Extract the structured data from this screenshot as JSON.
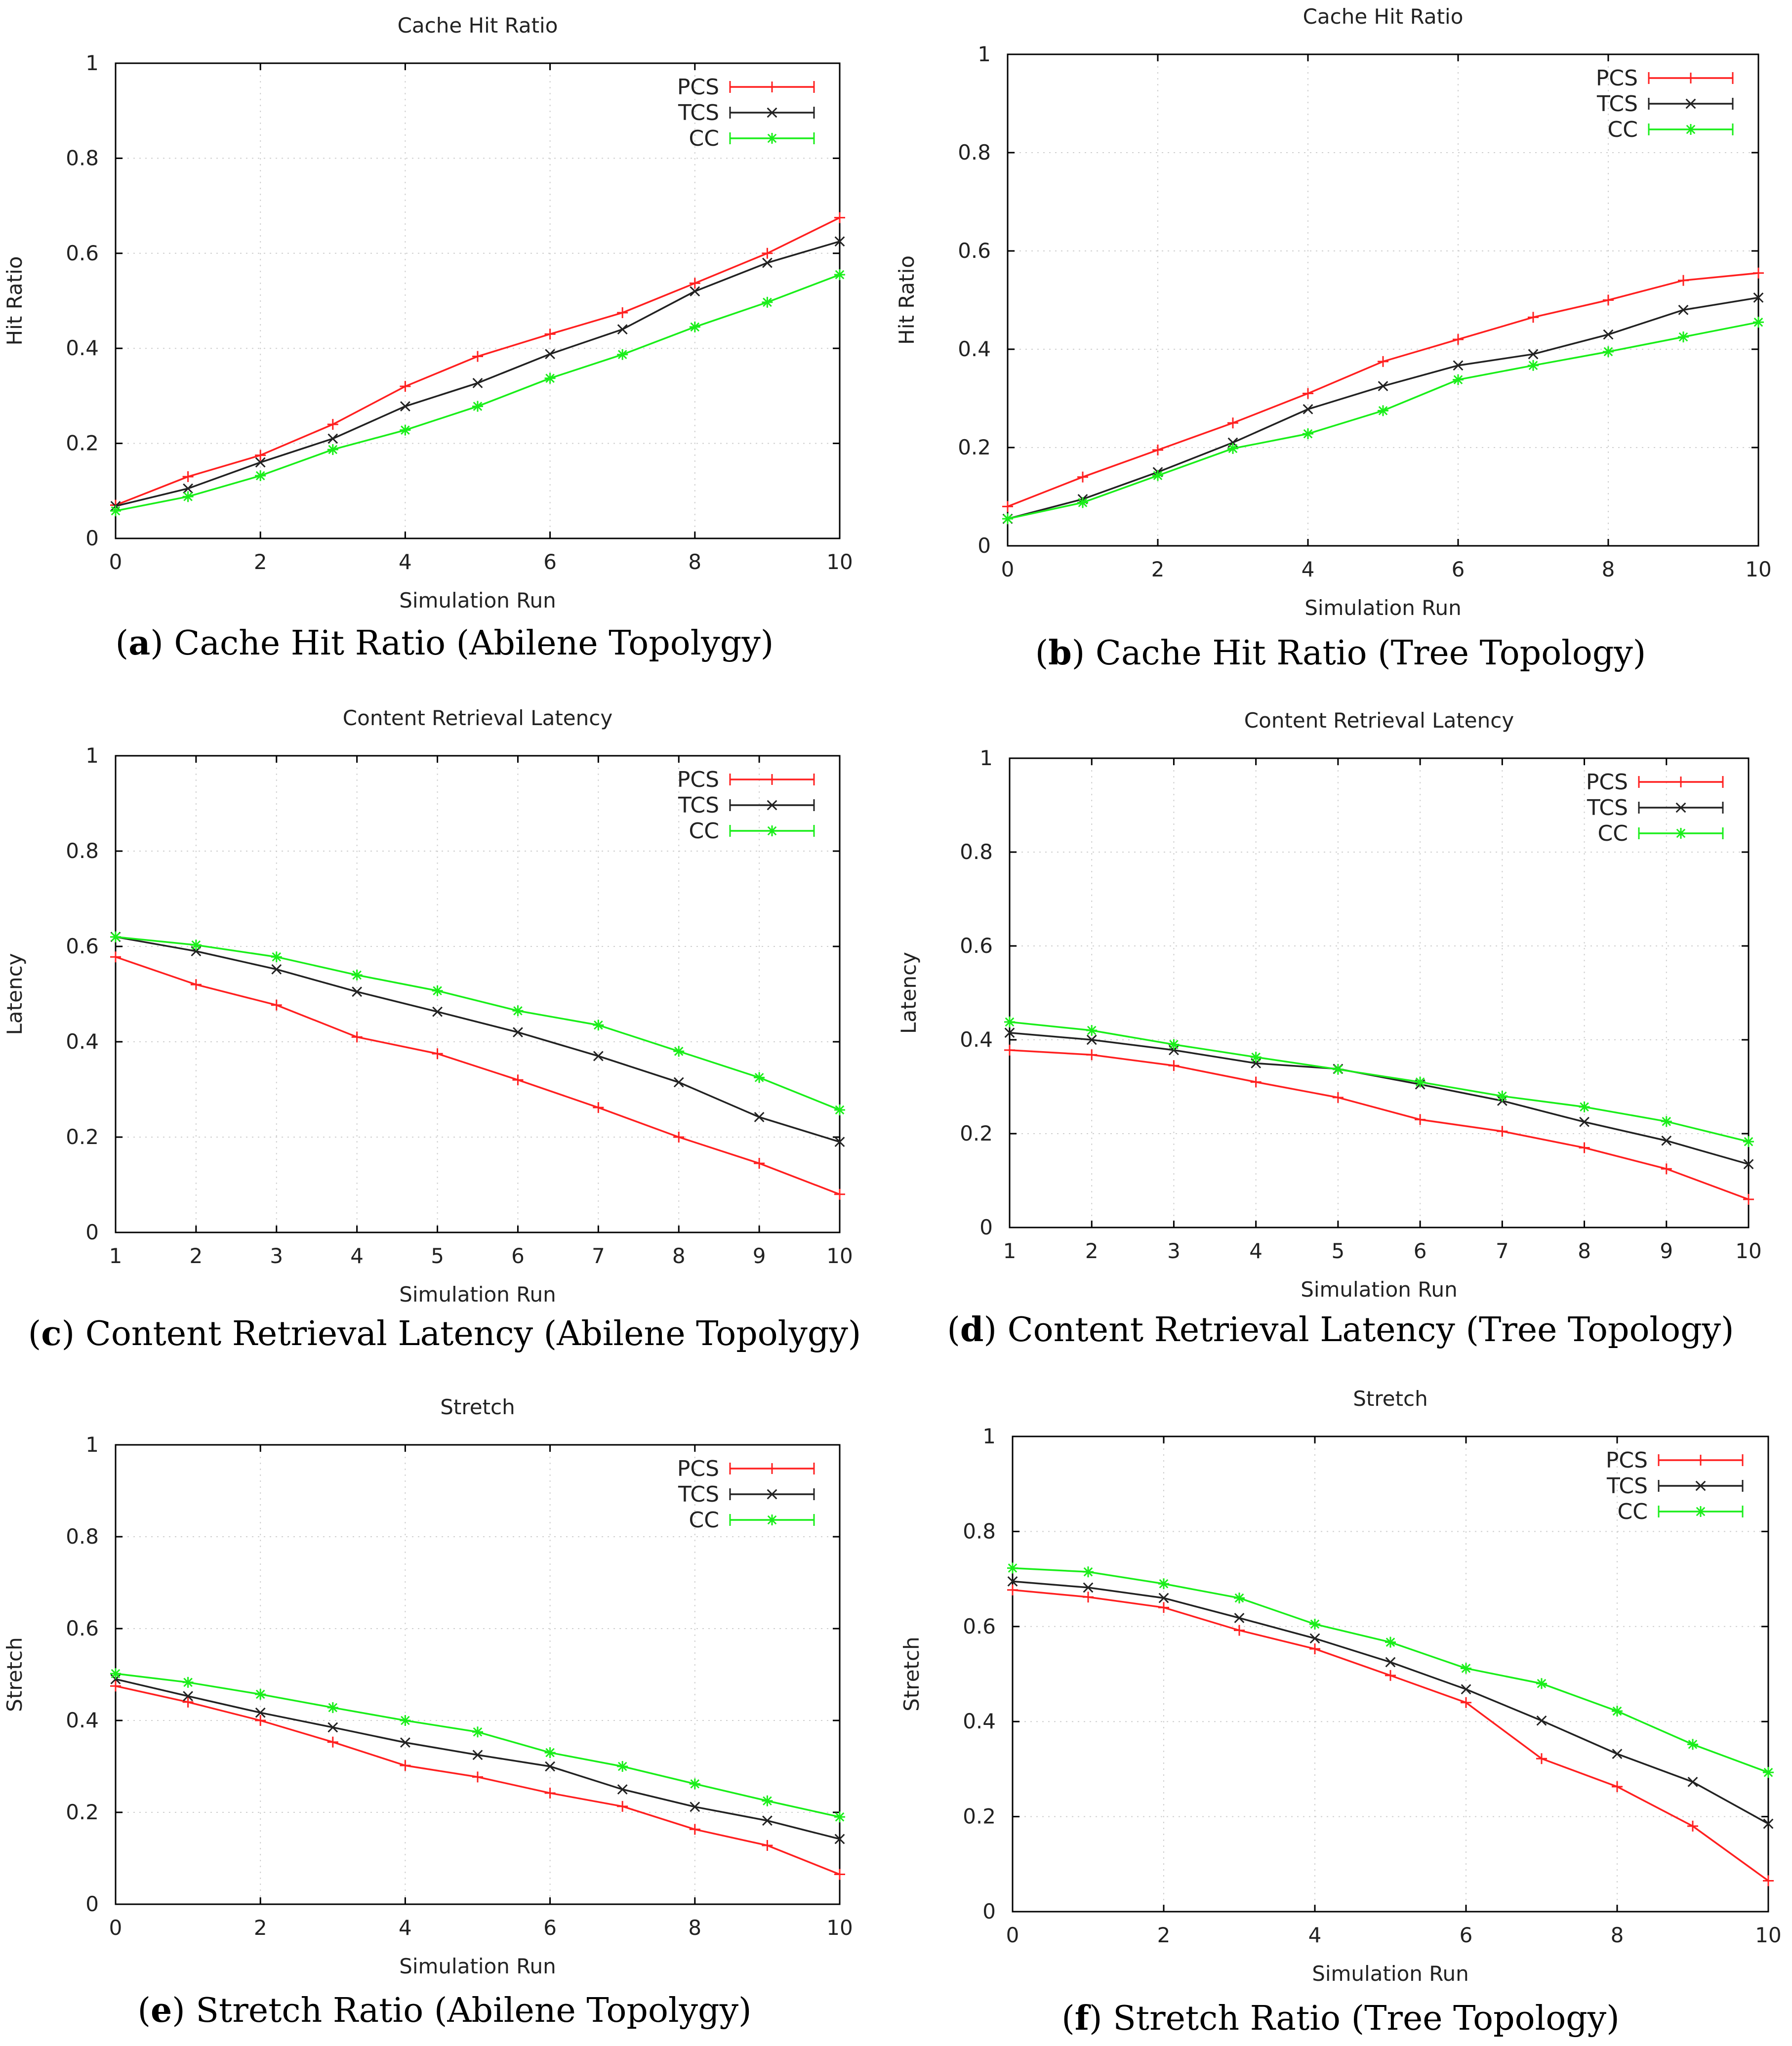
{
  "figure": {
    "panels": [
      {
        "letter": "a",
        "caption_text": " Cache Hit Ratio (Abilene Topolygy)"
      },
      {
        "letter": "b",
        "caption_text": " Cache Hit Ratio (Tree Topology)"
      },
      {
        "letter": "c",
        "caption_text": " Content Retrieval Latency (Abilene Topolygy)"
      },
      {
        "letter": "d",
        "caption_text": " Content Retrieval Latency (Tree Topology)"
      },
      {
        "letter": "e",
        "caption_text": " Stretch Ratio (Abilene Topolygy)"
      },
      {
        "letter": "f",
        "caption_text": " Stretch Ratio (Tree Topology)"
      }
    ]
  },
  "colors": {
    "PCS": "#ff2020",
    "TCS": "#222222",
    "CC": "#1aee1a",
    "grid": "#cfcfcf",
    "axis": "#000000"
  },
  "chart_data": [
    {
      "type": "line",
      "title": "Cache Hit Ratio",
      "xlabel": "Simulation Run",
      "ylabel": "Hit Ratio",
      "x": [
        0,
        1,
        2,
        3,
        4,
        5,
        6,
        7,
        8,
        9,
        10
      ],
      "xlim": [
        0,
        10
      ],
      "ylim": [
        0,
        1
      ],
      "xticks": [
        "0",
        "2",
        "4",
        "6",
        "8",
        "10"
      ],
      "yticks": [
        "0",
        "0.2",
        "0.4",
        "0.6",
        "0.8",
        "1"
      ],
      "legend": "top-right",
      "grid": true,
      "series": [
        {
          "name": "PCS",
          "marker": "+",
          "values": [
            0.07,
            0.13,
            0.175,
            0.24,
            0.32,
            0.383,
            0.43,
            0.475,
            0.537,
            0.6,
            0.675
          ]
        },
        {
          "name": "TCS",
          "marker": "x",
          "values": [
            0.068,
            0.105,
            0.16,
            0.21,
            0.278,
            0.327,
            0.388,
            0.44,
            0.52,
            0.58,
            0.625
          ]
        },
        {
          "name": "CC",
          "marker": "*",
          "values": [
            0.058,
            0.088,
            0.132,
            0.187,
            0.228,
            0.278,
            0.337,
            0.387,
            0.445,
            0.497,
            0.555
          ]
        }
      ]
    },
    {
      "type": "line",
      "title": "Cache Hit Ratio",
      "xlabel": "Simulation Run",
      "ylabel": "Hit Ratio",
      "x": [
        0,
        1,
        2,
        3,
        4,
        5,
        6,
        7,
        8,
        9,
        10
      ],
      "xlim": [
        0,
        10
      ],
      "ylim": [
        0,
        1
      ],
      "xticks": [
        "0",
        "2",
        "4",
        "6",
        "8",
        "10"
      ],
      "yticks": [
        "0",
        "0.2",
        "0.4",
        "0.6",
        "0.8",
        "1"
      ],
      "legend": "top-right",
      "grid": true,
      "series": [
        {
          "name": "PCS",
          "marker": "+",
          "values": [
            0.08,
            0.14,
            0.195,
            0.25,
            0.31,
            0.375,
            0.42,
            0.465,
            0.5,
            0.54,
            0.555
          ]
        },
        {
          "name": "TCS",
          "marker": "x",
          "values": [
            0.055,
            0.095,
            0.15,
            0.21,
            0.278,
            0.325,
            0.367,
            0.39,
            0.43,
            0.48,
            0.505
          ]
        },
        {
          "name": "CC",
          "marker": "*",
          "values": [
            0.055,
            0.088,
            0.143,
            0.198,
            0.228,
            0.275,
            0.338,
            0.367,
            0.395,
            0.425,
            0.455
          ]
        }
      ]
    },
    {
      "type": "line",
      "title": "Content Retrieval Latency",
      "xlabel": "Simulation Run",
      "ylabel": "Latency",
      "x": [
        1,
        2,
        3,
        4,
        5,
        6,
        7,
        8,
        9,
        10
      ],
      "xlim": [
        1,
        10
      ],
      "ylim": [
        0,
        1
      ],
      "xticks": [
        "1",
        "2",
        "3",
        "4",
        "5",
        "6",
        "7",
        "8",
        "9",
        "10"
      ],
      "yticks": [
        "0",
        "0.2",
        "0.4",
        "0.6",
        "0.8",
        "1"
      ],
      "legend": "top-right",
      "grid": true,
      "series": [
        {
          "name": "PCS",
          "marker": "+",
          "values": [
            0.578,
            0.52,
            0.477,
            0.41,
            0.375,
            0.32,
            0.262,
            0.2,
            0.145,
            0.08
          ]
        },
        {
          "name": "TCS",
          "marker": "x",
          "values": [
            0.62,
            0.59,
            0.552,
            0.505,
            0.463,
            0.42,
            0.37,
            0.315,
            0.242,
            0.19
          ]
        },
        {
          "name": "CC",
          "marker": "*",
          "values": [
            0.62,
            0.603,
            0.578,
            0.54,
            0.507,
            0.465,
            0.435,
            0.38,
            0.325,
            0.257
          ]
        }
      ]
    },
    {
      "type": "line",
      "title": "Content Retrieval Latency",
      "xlabel": "Simulation Run",
      "ylabel": "Latency",
      "x": [
        1,
        2,
        3,
        4,
        5,
        6,
        7,
        8,
        9,
        10
      ],
      "xlim": [
        1,
        10
      ],
      "ylim": [
        0,
        1
      ],
      "xticks": [
        "1",
        "2",
        "3",
        "4",
        "5",
        "6",
        "7",
        "8",
        "9",
        "10"
      ],
      "yticks": [
        "0",
        "0.2",
        "0.4",
        "0.6",
        "0.8",
        "1"
      ],
      "legend": "top-right",
      "grid": true,
      "series": [
        {
          "name": "PCS",
          "marker": "+",
          "values": [
            0.378,
            0.368,
            0.345,
            0.31,
            0.277,
            0.23,
            0.205,
            0.17,
            0.125,
            0.06
          ]
        },
        {
          "name": "TCS",
          "marker": "x",
          "values": [
            0.415,
            0.4,
            0.378,
            0.35,
            0.338,
            0.305,
            0.27,
            0.225,
            0.185,
            0.135
          ]
        },
        {
          "name": "CC",
          "marker": "*",
          "values": [
            0.438,
            0.42,
            0.39,
            0.363,
            0.337,
            0.31,
            0.28,
            0.257,
            0.226,
            0.183
          ]
        }
      ]
    },
    {
      "type": "line",
      "title": "Stretch",
      "xlabel": "Simulation Run",
      "ylabel": "Stretch",
      "x": [
        0,
        1,
        2,
        3,
        4,
        5,
        6,
        7,
        8,
        9,
        10
      ],
      "xlim": [
        0,
        10
      ],
      "ylim": [
        0,
        1
      ],
      "xticks": [
        "0",
        "2",
        "4",
        "6",
        "8",
        "10"
      ],
      "yticks": [
        "0",
        "0.2",
        "0.4",
        "0.6",
        "0.8",
        "1"
      ],
      "legend": "top-right",
      "grid": true,
      "series": [
        {
          "name": "PCS",
          "marker": "+",
          "values": [
            0.475,
            0.44,
            0.4,
            0.353,
            0.302,
            0.277,
            0.242,
            0.213,
            0.163,
            0.128,
            0.065
          ]
        },
        {
          "name": "TCS",
          "marker": "x",
          "values": [
            0.49,
            0.453,
            0.417,
            0.385,
            0.352,
            0.325,
            0.3,
            0.25,
            0.212,
            0.182,
            0.142
          ]
        },
        {
          "name": "CC",
          "marker": "*",
          "values": [
            0.502,
            0.483,
            0.457,
            0.428,
            0.4,
            0.375,
            0.33,
            0.3,
            0.262,
            0.225,
            0.19
          ]
        }
      ]
    },
    {
      "type": "line",
      "title": "Stretch",
      "xlabel": "Simulation Run",
      "ylabel": "Stretch",
      "x": [
        0,
        1,
        2,
        3,
        4,
        5,
        6,
        7,
        8,
        9,
        10
      ],
      "xlim": [
        0,
        10
      ],
      "ylim": [
        0,
        1
      ],
      "xticks": [
        "0",
        "2",
        "4",
        "6",
        "8",
        "10"
      ],
      "yticks": [
        "0",
        "0.2",
        "0.4",
        "0.6",
        "0.8",
        "1"
      ],
      "legend": "top-right",
      "grid": true,
      "series": [
        {
          "name": "PCS",
          "marker": "+",
          "values": [
            0.677,
            0.662,
            0.64,
            0.592,
            0.553,
            0.497,
            0.44,
            0.322,
            0.263,
            0.18,
            0.065
          ]
        },
        {
          "name": "TCS",
          "marker": "x",
          "values": [
            0.695,
            0.682,
            0.66,
            0.618,
            0.575,
            0.525,
            0.468,
            0.402,
            0.332,
            0.273,
            0.185
          ]
        },
        {
          "name": "CC",
          "marker": "*",
          "values": [
            0.723,
            0.715,
            0.69,
            0.66,
            0.605,
            0.567,
            0.512,
            0.48,
            0.422,
            0.352,
            0.293
          ]
        }
      ]
    }
  ]
}
